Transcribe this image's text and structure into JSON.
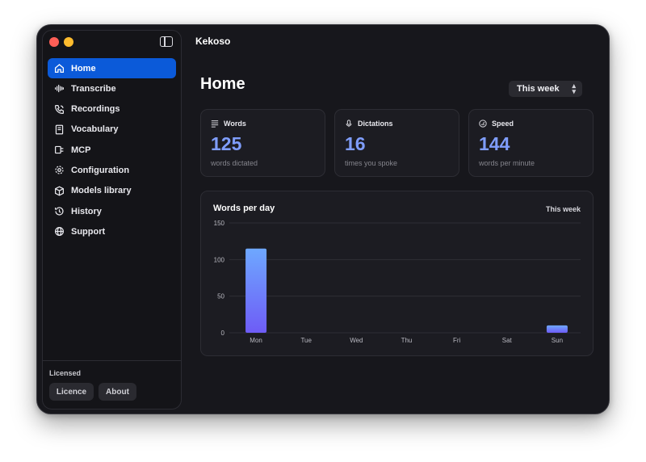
{
  "app": {
    "title": "Kekoso"
  },
  "sidebar": {
    "items": [
      {
        "label": "Home",
        "icon": "home-icon"
      },
      {
        "label": "Transcribe",
        "icon": "waveform-icon"
      },
      {
        "label": "Recordings",
        "icon": "phone-icon"
      },
      {
        "label": "Vocabulary",
        "icon": "book-icon"
      },
      {
        "label": "MCP",
        "icon": "plug-icon"
      },
      {
        "label": "Configuration",
        "icon": "gear-icon"
      },
      {
        "label": "Models library",
        "icon": "cube-icon"
      },
      {
        "label": "History",
        "icon": "history-icon"
      },
      {
        "label": "Support",
        "icon": "globe-icon"
      }
    ],
    "footer": {
      "status": "Licensed",
      "licence_label": "Licence",
      "about_label": "About"
    }
  },
  "main": {
    "title": "Home",
    "range_select": {
      "value": "This week"
    },
    "cards": [
      {
        "label": "Words",
        "value": "125",
        "sub": "words dictated",
        "icon": "lines-icon"
      },
      {
        "label": "Dictations",
        "value": "16",
        "sub": "times you spoke",
        "icon": "microphone-icon"
      },
      {
        "label": "Speed",
        "value": "144",
        "sub": "words per minute",
        "icon": "speedometer-icon"
      }
    ],
    "chart_card": {
      "title": "Words per day",
      "range": "This week"
    }
  },
  "colors": {
    "accent": "#0b5ad9",
    "value": "#7f9dfb",
    "bar_top": "#6ea8ff",
    "bar_bottom": "#6e5cf6"
  },
  "chart_data": {
    "type": "bar",
    "categories": [
      "Mon",
      "Tue",
      "Wed",
      "Thu",
      "Fri",
      "Sat",
      "Sun"
    ],
    "values": [
      115,
      0,
      0,
      0,
      0,
      0,
      10
    ],
    "title": "Words per day",
    "ylim": [
      0,
      150
    ],
    "yticks": [
      "150",
      "100",
      "50",
      "0"
    ],
    "grid": true
  }
}
